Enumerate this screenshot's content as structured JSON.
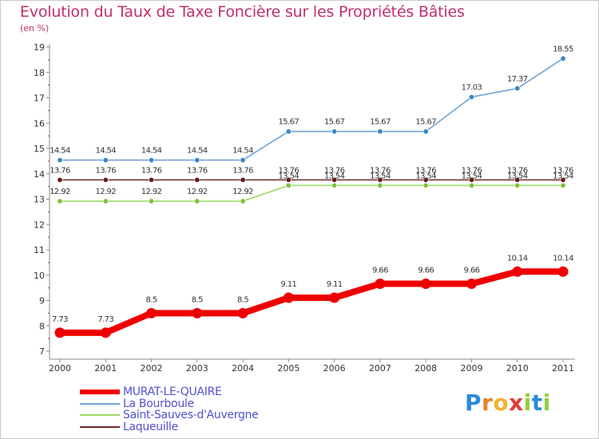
{
  "title": "Evolution du Taux de Taxe Foncière sur les Propriétés Bâties",
  "unit_label": "(en %)",
  "logo": {
    "letters": [
      "P",
      "r",
      "o",
      "x",
      "i",
      "t",
      "i"
    ],
    "colors": [
      "#2b8ad8",
      "#e8832a",
      "#f2b233",
      "#e03c3c",
      "#8fcf3b",
      "#2b8ad8",
      "#8fcf3b"
    ]
  },
  "chart_data": {
    "type": "line",
    "title": "Evolution du Taux de Taxe Foncière sur les Propriétés Bâties",
    "ylabel": "(en %)",
    "ylim": [
      7,
      19
    ],
    "yticks": [
      7,
      8,
      9,
      10,
      11,
      12,
      13,
      14,
      15,
      16,
      17,
      18,
      19
    ],
    "grid": false,
    "legend_position": "bottom-left",
    "x": [
      "2000",
      "2001",
      "2002",
      "2003",
      "2004",
      "2005",
      "2006",
      "2007",
      "2008",
      "2009",
      "2010",
      "2011"
    ],
    "series": [
      {
        "name": "MURAT-LE-QUAIRE",
        "color": "#ee0000",
        "emphasis": true,
        "values": [
          7.73,
          7.73,
          8.5,
          8.5,
          8.5,
          9.11,
          9.11,
          9.66,
          9.66,
          9.66,
          10.14,
          10.14
        ],
        "labels": [
          "7.73",
          "7.73",
          "8.5",
          "8.5",
          "8.5",
          "9.11",
          "9.11",
          "9.66",
          "9.66",
          "9.66",
          "10.14",
          "10.14"
        ]
      },
      {
        "name": "La Bourboule",
        "color": "#6fa3d6",
        "marker": "#3b86c6",
        "values": [
          14.54,
          14.54,
          14.54,
          14.54,
          14.54,
          15.67,
          15.67,
          15.67,
          15.67,
          17.03,
          17.37,
          18.55
        ],
        "labels": [
          "14.54",
          "14.54",
          "14.54",
          "14.54",
          "14.54",
          "15.67",
          "15.67",
          "15.67",
          "15.67",
          "17.03",
          "17.37",
          "18.55"
        ]
      },
      {
        "name": "Saint-Sauves-d'Auvergne",
        "color": "#9fd96a",
        "marker": "#7cc23e",
        "values": [
          12.92,
          12.92,
          12.92,
          12.92,
          12.92,
          13.54,
          13.54,
          13.54,
          13.54,
          13.54,
          13.54,
          13.54
        ],
        "labels": [
          "12.92",
          "12.92",
          "12.92",
          "12.92",
          "12.92",
          "13.54",
          "13.54",
          "13.54",
          "13.54",
          "13.54",
          "13.54",
          "13.54"
        ]
      },
      {
        "name": "Laqueuille",
        "color": "#6b2a2a",
        "marker": "#6b1c1c",
        "values": [
          13.76,
          13.76,
          13.76,
          13.76,
          13.76,
          13.76,
          13.76,
          13.76,
          13.76,
          13.76,
          13.76,
          13.76
        ],
        "labels": [
          "13.76",
          "13.76",
          "13.76",
          "13.76",
          "13.76",
          "13.76",
          "13.76",
          "13.76",
          "13.76",
          "13.76",
          "13.76",
          "13.76"
        ]
      }
    ]
  }
}
